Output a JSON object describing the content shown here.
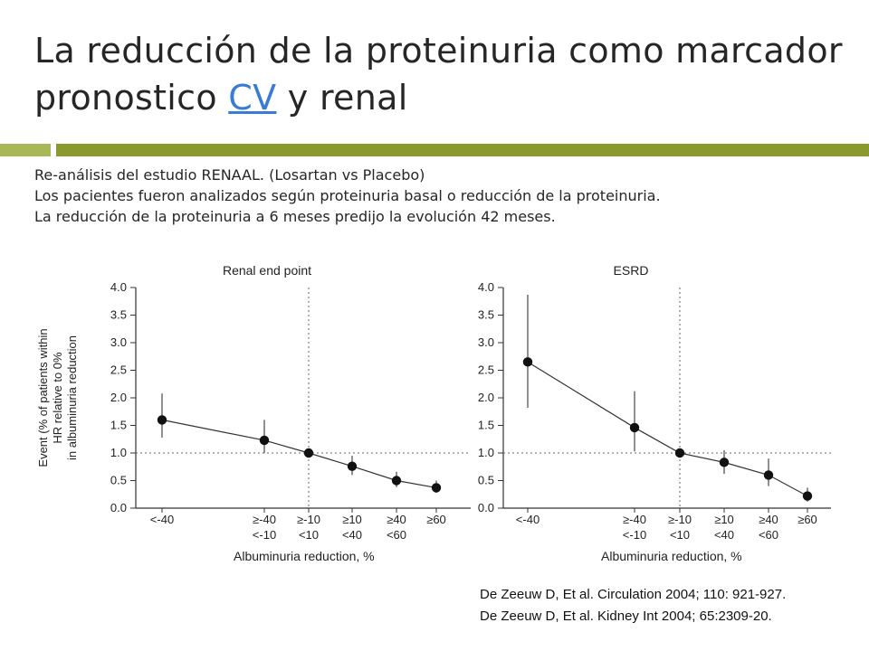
{
  "slide": {
    "title_part1": "La reducción de la proteinuria como marcador pronostico ",
    "title_link": "CV",
    "title_part2": " y renal",
    "subtitle_lines": [
      "Re-análisis del estudio RENAAL. (Losartan vs Placebo)",
      "Los pacientes fueron analizados según proteinuria basal o reducción de la proteinuria.",
      "La reducción de la proteinuria a 6 meses predijo la evolución 42 meses."
    ],
    "references": [
      "De Zeeuw D, Et al. Circulation 2004; 110: 921-927.",
      "De Zeeuw D, Et al. Kidney Int 2004; 65:2309-20."
    ],
    "accent_colors": {
      "bar_light": "#a8b856",
      "bar_dark": "#8a9a2e",
      "link": "#3a7bd5"
    }
  },
  "chart_data": [
    {
      "type": "scatter",
      "title": "Renal end point",
      "xlabel": "Albuminuria reduction, %",
      "ylabel_lines": [
        "Event (% of patients within",
        "HR relative to 0%",
        "in albuminuria reduction"
      ],
      "categories": [
        [
          "<-40"
        ],
        [
          "≥-40",
          "<-10"
        ],
        [
          "≥-10",
          "<10"
        ],
        [
          "≥10",
          "<40"
        ],
        [
          "≥40",
          "<60"
        ],
        [
          "≥60"
        ]
      ],
      "values": [
        1.6,
        1.23,
        1.0,
        0.76,
        0.5,
        0.37
      ],
      "ci_low": [
        1.28,
        1.0,
        1.0,
        0.6,
        0.38,
        0.28
      ],
      "ci_high": [
        2.08,
        1.6,
        1.0,
        0.95,
        0.66,
        0.5
      ],
      "ylim": [
        0,
        4
      ],
      "yticks": [
        "0.0",
        "0.5",
        "1.0",
        "1.5",
        "2.0",
        "2.5",
        "3.0",
        "3.5",
        "4.0"
      ],
      "reference_y": 1.0,
      "reference_x_index": 2
    },
    {
      "type": "scatter",
      "title": "ESRD",
      "xlabel": "Albuminuria reduction, %",
      "categories": [
        [
          "<-40"
        ],
        [
          "≥-40",
          "<-10"
        ],
        [
          "≥-10",
          "<10"
        ],
        [
          "≥10",
          "<40"
        ],
        [
          "≥40",
          "<60"
        ],
        [
          "≥60"
        ]
      ],
      "values": [
        2.65,
        1.46,
        1.0,
        0.83,
        0.6,
        0.22
      ],
      "ci_low": [
        1.82,
        1.03,
        1.0,
        0.62,
        0.4,
        0.12
      ],
      "ci_high": [
        3.87,
        2.12,
        1.0,
        1.05,
        0.9,
        0.37
      ],
      "ylim": [
        0,
        4
      ],
      "yticks": [
        "0.0",
        "0.5",
        "1.0",
        "1.5",
        "2.0",
        "2.5",
        "3.0",
        "3.5",
        "4.0"
      ],
      "reference_y": 1.0,
      "reference_x_index": 2
    }
  ]
}
